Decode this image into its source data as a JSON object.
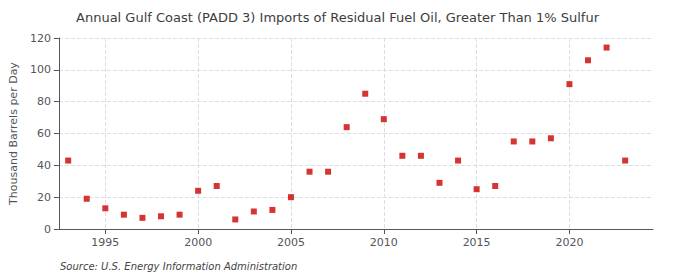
{
  "chart_data": {
    "type": "scatter",
    "title": "Annual Gulf Coast (PADD 3) Imports of Residual Fuel Oil, Greater Than 1% Sulfur",
    "ylabel": "Thousand Barrels per Day",
    "annotation": "Source: U.S. Energy Information Administration",
    "x": [
      1993,
      1994,
      1995,
      1996,
      1997,
      1998,
      1999,
      2000,
      2001,
      2002,
      2003,
      2004,
      2005,
      2006,
      2007,
      2008,
      2009,
      2010,
      2011,
      2012,
      2013,
      2014,
      2015,
      2016,
      2017,
      2018,
      2019,
      2020,
      2021,
      2022,
      2023
    ],
    "values": [
      43,
      19,
      13,
      9,
      7,
      8,
      9,
      24,
      27,
      6,
      11,
      12,
      20,
      36,
      36,
      64,
      85,
      69,
      46,
      46,
      29,
      43,
      25,
      27,
      55,
      55,
      57,
      91,
      106,
      114,
      43
    ],
    "color": "#cc0000",
    "marker": "square",
    "xlim": [
      1992.5,
      2024.5
    ],
    "ylim": [
      0,
      120
    ],
    "yticks": [
      0,
      20,
      40,
      60,
      80,
      100,
      120
    ],
    "xticks": [
      1995,
      2000,
      2005,
      2010,
      2015,
      2020
    ],
    "grid": true
  }
}
